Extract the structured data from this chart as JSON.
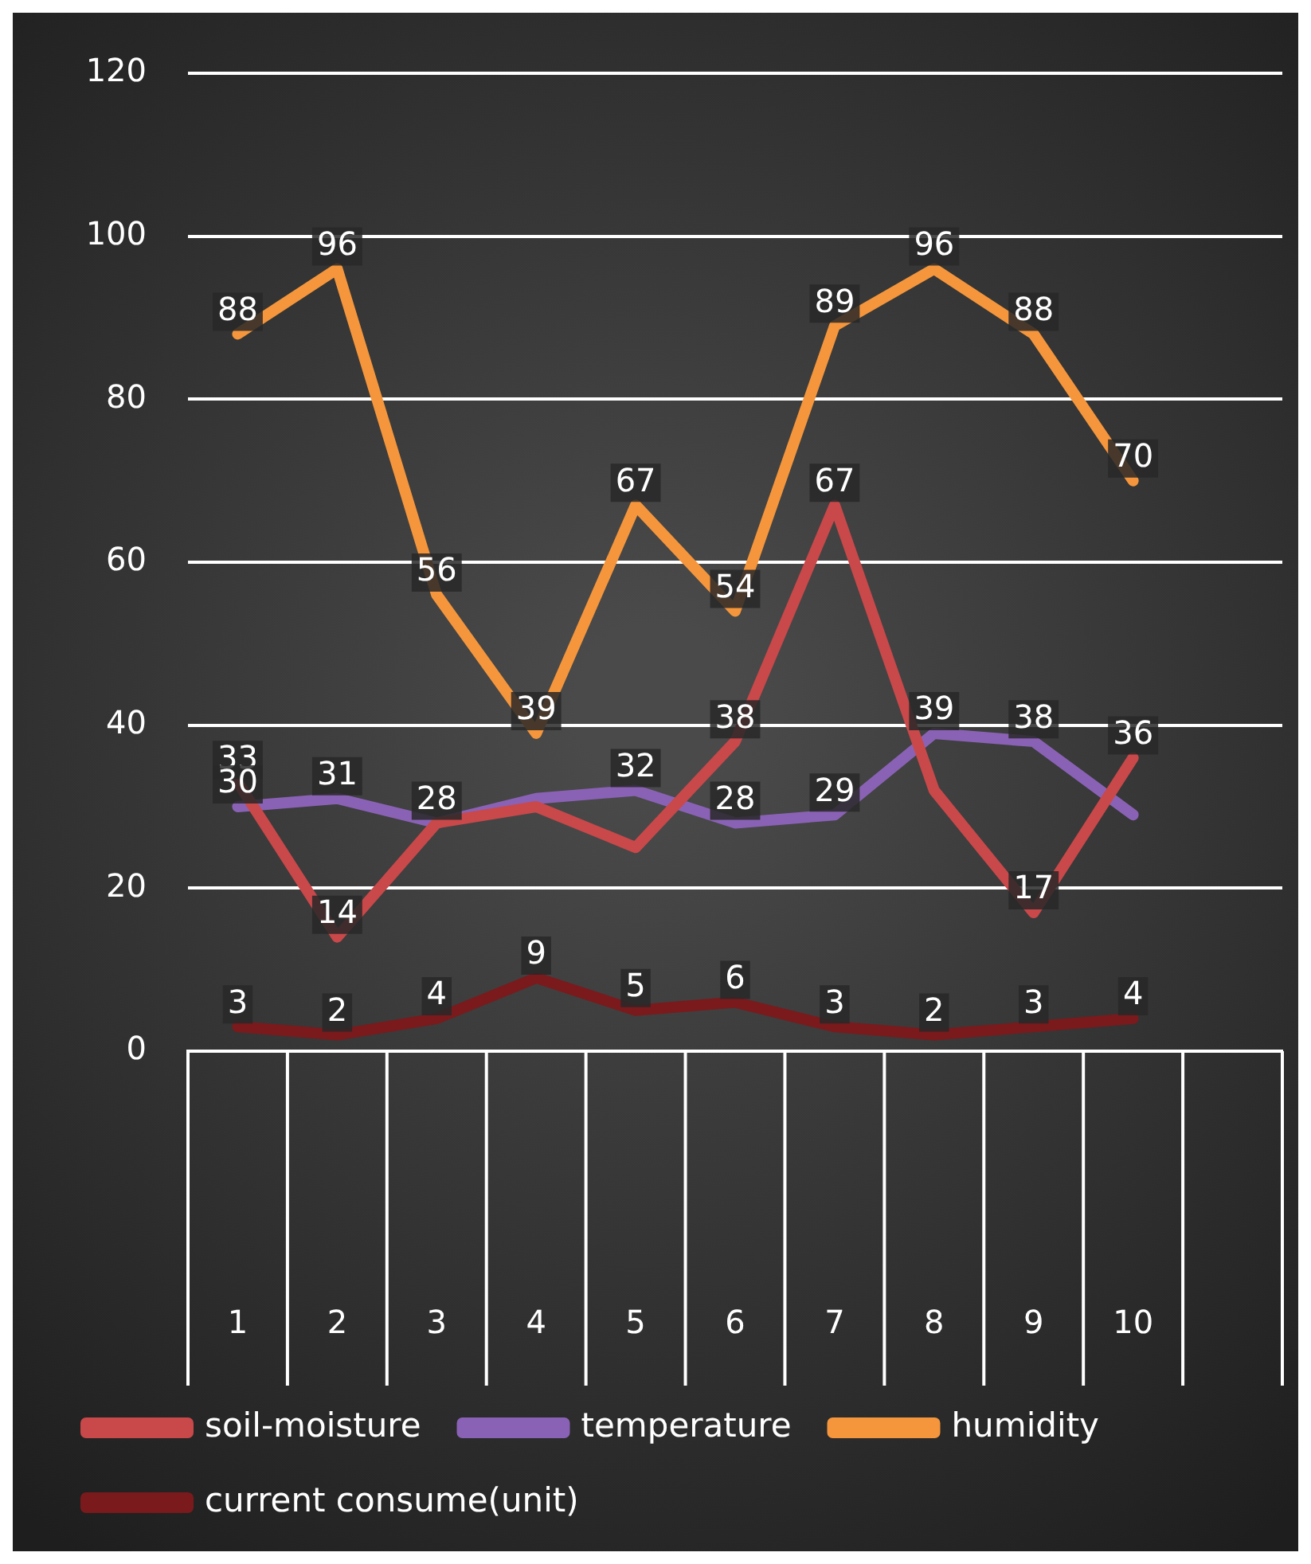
{
  "chart_data": {
    "type": "line",
    "categories": [
      "1",
      "2",
      "3",
      "4",
      "5",
      "6",
      "7",
      "8",
      "9",
      "10",
      null
    ],
    "series": [
      {
        "name": "soil-moisture",
        "color": "#c9484a",
        "values": [
          33,
          14,
          28,
          30,
          25,
          38,
          67,
          32,
          17,
          36,
          null
        ],
        "value_labels": [
          "33",
          "14",
          null,
          null,
          null,
          "38",
          "67",
          null,
          "17",
          "36",
          null
        ]
      },
      {
        "name": "temperature",
        "color": "#8a62b5",
        "values": [
          30,
          31,
          28,
          31,
          32,
          28,
          29,
          39,
          38,
          29,
          null
        ],
        "value_labels": [
          "30",
          "31",
          "28",
          null,
          "32",
          "28",
          "29",
          "39",
          "38",
          null,
          null
        ]
      },
      {
        "name": "humidity",
        "color": "#f5963c",
        "values": [
          88,
          96,
          56,
          39,
          67,
          54,
          89,
          96,
          88,
          70,
          null
        ],
        "value_labels": [
          "88",
          "96",
          "56",
          "39",
          "67",
          "54",
          "89",
          "96",
          "88",
          "70",
          null
        ]
      },
      {
        "name": "current consume(unit)",
        "color": "#7a1a1c",
        "values": [
          3,
          2,
          4,
          9,
          5,
          6,
          3,
          2,
          3,
          4,
          null
        ],
        "value_labels": [
          "3",
          "2",
          "4",
          "9",
          "5",
          "6",
          "3",
          "2",
          "3",
          "4",
          null
        ]
      }
    ],
    "ylim": [
      0,
      120
    ],
    "yticks": [
      0,
      20,
      40,
      60,
      80,
      100,
      120
    ],
    "grid": "y",
    "legend": "bottom",
    "marker": "none",
    "line_style": "solid"
  }
}
